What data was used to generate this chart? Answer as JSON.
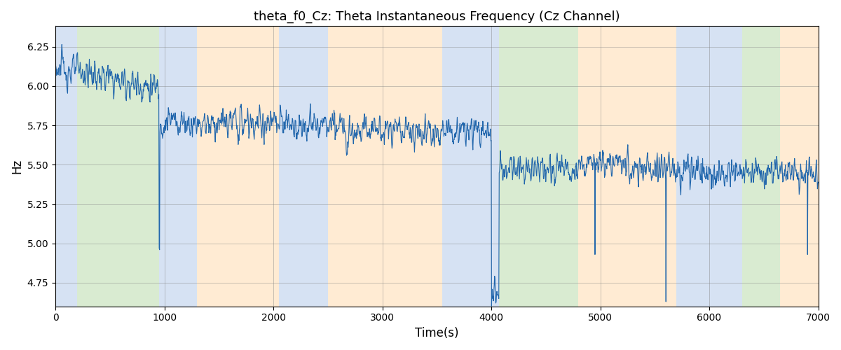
{
  "title": "theta_f0_Cz: Theta Instantaneous Frequency (Cz Channel)",
  "xlabel": "Time(s)",
  "ylabel": "Hz",
  "xlim": [
    0,
    7000
  ],
  "ylim": [
    4.6,
    6.38
  ],
  "line_color": "#2166ac",
  "line_width": 0.8,
  "bg_bands": [
    {
      "start": 0,
      "end": 200,
      "color": "#aec6e8",
      "alpha": 0.5
    },
    {
      "start": 200,
      "end": 950,
      "color": "#b5d9a5",
      "alpha": 0.5
    },
    {
      "start": 950,
      "end": 1300,
      "color": "#aec6e8",
      "alpha": 0.5
    },
    {
      "start": 1300,
      "end": 2050,
      "color": "#ffd9a8",
      "alpha": 0.5
    },
    {
      "start": 2050,
      "end": 2500,
      "color": "#aec6e8",
      "alpha": 0.5
    },
    {
      "start": 2500,
      "end": 3550,
      "color": "#ffd9a8",
      "alpha": 0.5
    },
    {
      "start": 3550,
      "end": 3970,
      "color": "#aec6e8",
      "alpha": 0.5
    },
    {
      "start": 3970,
      "end": 4070,
      "color": "#aec6e8",
      "alpha": 0.5
    },
    {
      "start": 4070,
      "end": 4800,
      "color": "#b5d9a5",
      "alpha": 0.5
    },
    {
      "start": 4800,
      "end": 4970,
      "color": "#ffd9a8",
      "alpha": 0.5
    },
    {
      "start": 4970,
      "end": 5700,
      "color": "#ffd9a8",
      "alpha": 0.5
    },
    {
      "start": 5700,
      "end": 6300,
      "color": "#aec6e8",
      "alpha": 0.5
    },
    {
      "start": 6300,
      "end": 6650,
      "color": "#b5d9a5",
      "alpha": 0.5
    },
    {
      "start": 6650,
      "end": 7050,
      "color": "#ffd9a8",
      "alpha": 0.5
    }
  ],
  "yticks": [
    4.75,
    5.0,
    5.25,
    5.5,
    5.75,
    6.0,
    6.25
  ],
  "xticks": [
    0,
    1000,
    2000,
    3000,
    4000,
    5000,
    6000,
    7000
  ],
  "seed": 123,
  "n_points": 2000
}
